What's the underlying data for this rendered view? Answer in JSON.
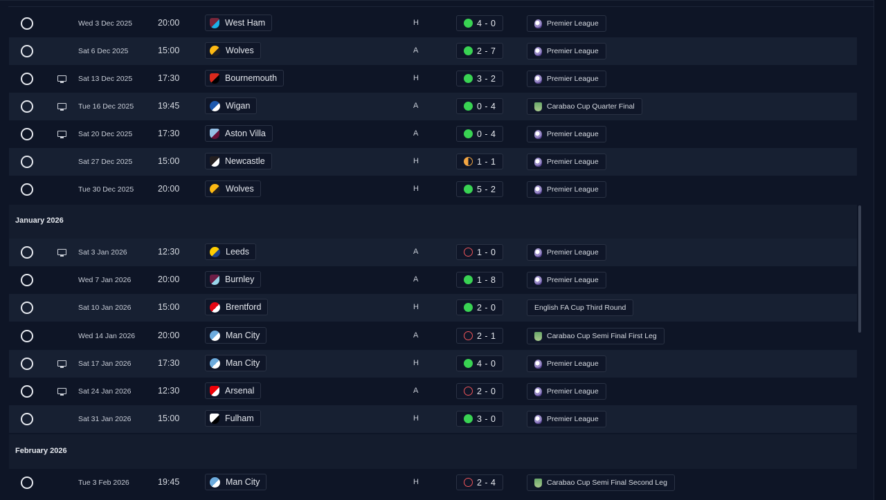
{
  "colors": {
    "win": "#39d353",
    "loss": "#f0555a",
    "draw": "#f5a742",
    "background": "#0e1526",
    "row_alt": "#172032"
  },
  "icons": {
    "status": "circle-outline-icon",
    "broadcast": "tv-icon",
    "premier_league": "premier-league-lion-icon",
    "carabao_cup": "carabao-cup-trophy-icon"
  },
  "months": [
    {
      "label": "January 2026"
    },
    {
      "label": "February 2026"
    }
  ],
  "fixtures": [
    {
      "date": "Wed 3 Dec 2025",
      "time": "20:00",
      "tv": false,
      "team": "West Ham",
      "venue": "H",
      "result": "win",
      "score": "4 - 0",
      "competition": "Premier League",
      "comp_icon": "pl",
      "crest": [
        "#7a263a",
        "#1bb1e7"
      ]
    },
    {
      "date": "Sat 6 Dec 2025",
      "time": "15:00",
      "tv": false,
      "team": "Wolves",
      "venue": "A",
      "result": "win",
      "score": "2 - 7",
      "competition": "Premier League",
      "comp_icon": "pl",
      "crest": [
        "#fdb913",
        "#231f20"
      ]
    },
    {
      "date": "Sat 13 Dec 2025",
      "time": "17:30",
      "tv": true,
      "team": "Bournemouth",
      "venue": "H",
      "result": "win",
      "score": "3 - 2",
      "competition": "Premier League",
      "comp_icon": "pl",
      "crest": [
        "#da291c",
        "#000000"
      ]
    },
    {
      "date": "Tue 16 Dec 2025",
      "time": "19:45",
      "tv": true,
      "team": "Wigan",
      "venue": "A",
      "result": "win",
      "score": "0 - 4",
      "competition": "Carabao Cup Quarter Final",
      "comp_icon": "cup",
      "crest": [
        "#1d59af",
        "#ffffff"
      ]
    },
    {
      "date": "Sat 20 Dec 2025",
      "time": "17:30",
      "tv": true,
      "team": "Aston Villa",
      "venue": "A",
      "result": "win",
      "score": "0 - 4",
      "competition": "Premier League",
      "comp_icon": "pl",
      "crest": [
        "#95bfe5",
        "#670e36"
      ]
    },
    {
      "date": "Sat 27 Dec 2025",
      "time": "15:00",
      "tv": false,
      "team": "Newcastle",
      "venue": "H",
      "result": "draw",
      "score": "1 - 1",
      "competition": "Premier League",
      "comp_icon": "pl",
      "crest": [
        "#241f20",
        "#ffffff"
      ]
    },
    {
      "date": "Tue 30 Dec 2025",
      "time": "20:00",
      "tv": false,
      "team": "Wolves",
      "venue": "H",
      "result": "win",
      "score": "5 - 2",
      "competition": "Premier League",
      "comp_icon": "pl",
      "crest": [
        "#fdb913",
        "#231f20"
      ]
    },
    {
      "date": "Sat 3 Jan 2026",
      "time": "12:30",
      "tv": true,
      "team": "Leeds",
      "venue": "A",
      "result": "loss",
      "score": "1 - 0",
      "competition": "Premier League",
      "comp_icon": "pl",
      "crest": [
        "#ffcd00",
        "#1d428a"
      ]
    },
    {
      "date": "Wed 7 Jan 2026",
      "time": "20:00",
      "tv": false,
      "team": "Burnley",
      "venue": "A",
      "result": "win",
      "score": "1 - 8",
      "competition": "Premier League",
      "comp_icon": "pl",
      "crest": [
        "#6c1d45",
        "#99d6ea"
      ]
    },
    {
      "date": "Sat 10 Jan 2026",
      "time": "15:00",
      "tv": false,
      "team": "Brentford",
      "venue": "H",
      "result": "win",
      "score": "2 - 0",
      "competition": "English FA Cup Third Round",
      "comp_icon": "",
      "crest": [
        "#e30613",
        "#ffffff"
      ]
    },
    {
      "date": "Wed 14 Jan 2026",
      "time": "20:00",
      "tv": false,
      "team": "Man City",
      "venue": "A",
      "result": "loss",
      "score": "2 - 1",
      "competition": "Carabao Cup Semi Final First Leg",
      "comp_icon": "cup",
      "crest": [
        "#6cabdd",
        "#ffffff"
      ]
    },
    {
      "date": "Sat 17 Jan 2026",
      "time": "17:30",
      "tv": true,
      "team": "Man City",
      "venue": "H",
      "result": "win",
      "score": "4 - 0",
      "competition": "Premier League",
      "comp_icon": "pl",
      "crest": [
        "#6cabdd",
        "#ffffff"
      ]
    },
    {
      "date": "Sat 24 Jan 2026",
      "time": "12:30",
      "tv": true,
      "team": "Arsenal",
      "venue": "A",
      "result": "loss",
      "score": "2 - 0",
      "competition": "Premier League",
      "comp_icon": "pl",
      "crest": [
        "#ef0107",
        "#ffffff"
      ]
    },
    {
      "date": "Sat 31 Jan 2026",
      "time": "15:00",
      "tv": false,
      "team": "Fulham",
      "venue": "H",
      "result": "win",
      "score": "3 - 0",
      "competition": "Premier League",
      "comp_icon": "pl",
      "crest": [
        "#ffffff",
        "#000000"
      ]
    },
    {
      "date": "Tue 3 Feb 2026",
      "time": "19:45",
      "tv": false,
      "team": "Man City",
      "venue": "H",
      "result": "loss",
      "score": "2 - 4",
      "competition": "Carabao Cup Semi Final Second Leg",
      "comp_icon": "cup",
      "crest": [
        "#6cabdd",
        "#ffffff"
      ]
    }
  ]
}
